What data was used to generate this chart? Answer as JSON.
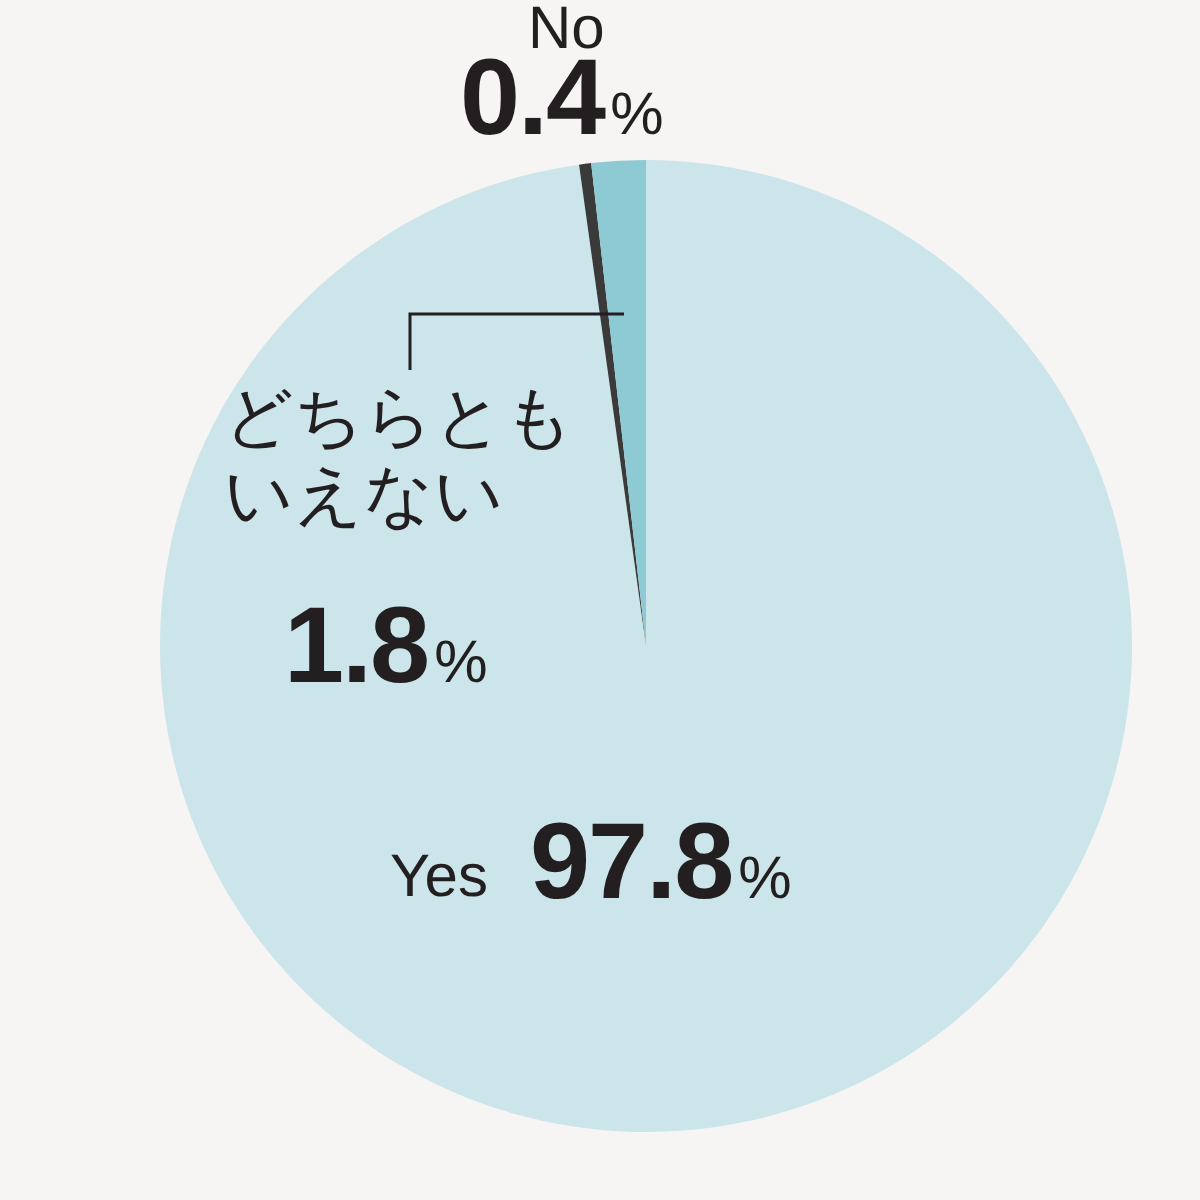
{
  "chart_data": {
    "type": "pie",
    "categories": [
      "Yes",
      "No",
      "どちらともいえない"
    ],
    "values": [
      97.8,
      0.4,
      1.8
    ],
    "colors": [
      "#cbe5ea",
      "#3a3a3a",
      "#8ecad4"
    ],
    "value_labels": [
      "97.8%",
      "0.4%",
      "1.8%"
    ]
  }
}
